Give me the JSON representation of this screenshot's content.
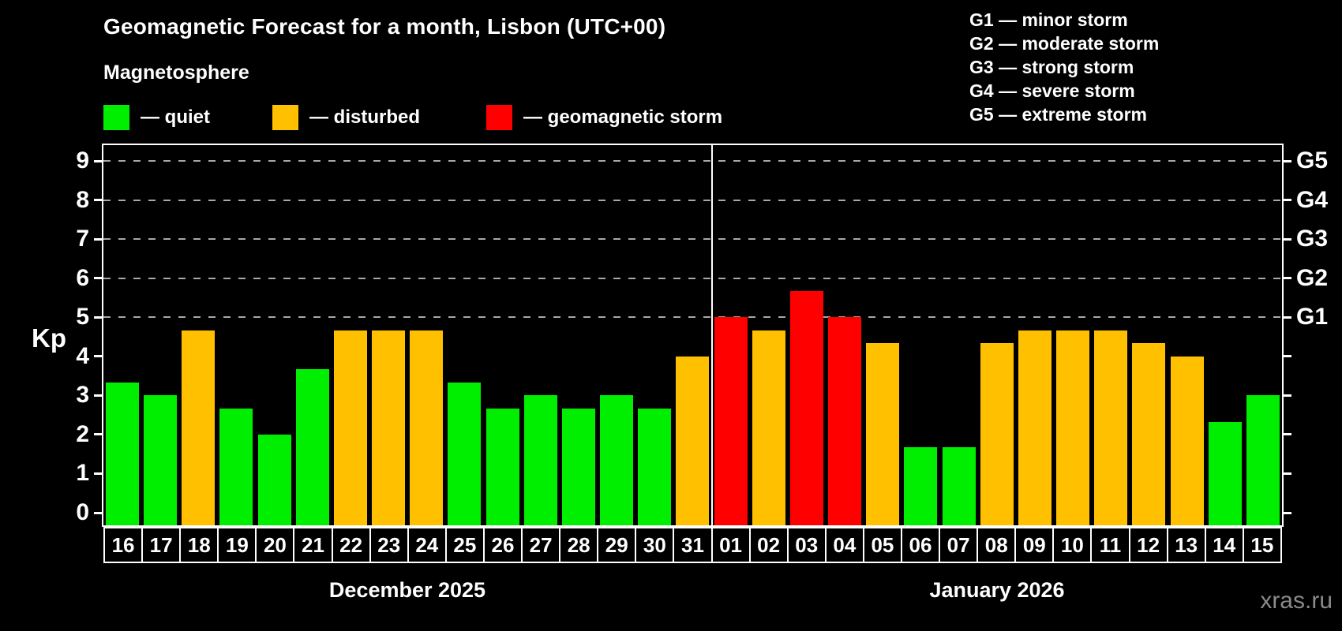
{
  "title": "Geomagnetic Forecast for a month, Lisbon (UTC+00)",
  "subtitle": "Magnetosphere",
  "legend": [
    {
      "key": "quiet",
      "label": "— quiet",
      "color": "#00ef00"
    },
    {
      "key": "disturbed",
      "label": "— disturbed",
      "color": "#ffc000"
    },
    {
      "key": "storm",
      "label": "— geomagnetic storm",
      "color": "#ff0000"
    }
  ],
  "g_scale": [
    "G1 — minor storm",
    "G2 — moderate storm",
    "G3 — strong storm",
    "G4 — severe storm",
    "G5 — extreme storm"
  ],
  "watermark": "xras.ru",
  "chart_data": {
    "type": "bar",
    "title": "Geomagnetic Forecast for a month, Lisbon (UTC+00)",
    "ylabel": "Kp",
    "ylim": [
      -0.32,
      9.4
    ],
    "yticks": [
      0,
      1,
      2,
      3,
      4,
      5,
      6,
      7,
      8,
      9
    ],
    "gridlines_at": [
      5,
      6,
      7,
      8,
      9
    ],
    "grid": "dashed horizontal lines only at storm levels Kp 5-9",
    "legend_position": "top-left",
    "right_axis": [
      {
        "label": "G5",
        "kp": 9
      },
      {
        "label": "G4",
        "kp": 8
      },
      {
        "label": "G3",
        "kp": 7
      },
      {
        "label": "G2",
        "kp": 6
      },
      {
        "label": "G1",
        "kp": 5
      }
    ],
    "months": [
      {
        "label": "December 2025",
        "days": 16
      },
      {
        "label": "January 2026",
        "days": 15
      }
    ],
    "divider_after_index": 16,
    "bars": [
      {
        "day": "16",
        "kp": 3.33,
        "status": "quiet"
      },
      {
        "day": "17",
        "kp": 3.0,
        "status": "quiet"
      },
      {
        "day": "18",
        "kp": 4.67,
        "status": "disturbed"
      },
      {
        "day": "19",
        "kp": 2.67,
        "status": "quiet"
      },
      {
        "day": "20",
        "kp": 2.0,
        "status": "quiet"
      },
      {
        "day": "21",
        "kp": 3.67,
        "status": "quiet"
      },
      {
        "day": "22",
        "kp": 4.67,
        "status": "disturbed"
      },
      {
        "day": "23",
        "kp": 4.67,
        "status": "disturbed"
      },
      {
        "day": "24",
        "kp": 4.67,
        "status": "disturbed"
      },
      {
        "day": "25",
        "kp": 3.33,
        "status": "quiet"
      },
      {
        "day": "26",
        "kp": 2.67,
        "status": "quiet"
      },
      {
        "day": "27",
        "kp": 3.0,
        "status": "quiet"
      },
      {
        "day": "28",
        "kp": 2.67,
        "status": "quiet"
      },
      {
        "day": "29",
        "kp": 3.0,
        "status": "quiet"
      },
      {
        "day": "30",
        "kp": 2.67,
        "status": "quiet"
      },
      {
        "day": "31",
        "kp": 4.0,
        "status": "disturbed"
      },
      {
        "day": "01",
        "kp": 5.0,
        "status": "storm"
      },
      {
        "day": "02",
        "kp": 4.67,
        "status": "disturbed"
      },
      {
        "day": "03",
        "kp": 5.67,
        "status": "storm"
      },
      {
        "day": "04",
        "kp": 5.0,
        "status": "storm"
      },
      {
        "day": "05",
        "kp": 4.33,
        "status": "disturbed"
      },
      {
        "day": "06",
        "kp": 1.67,
        "status": "quiet"
      },
      {
        "day": "07",
        "kp": 1.67,
        "status": "quiet"
      },
      {
        "day": "08",
        "kp": 4.33,
        "status": "disturbed"
      },
      {
        "day": "09",
        "kp": 4.67,
        "status": "disturbed"
      },
      {
        "day": "10",
        "kp": 4.67,
        "status": "disturbed"
      },
      {
        "day": "11",
        "kp": 4.67,
        "status": "disturbed"
      },
      {
        "day": "12",
        "kp": 4.33,
        "status": "disturbed"
      },
      {
        "day": "13",
        "kp": 4.0,
        "status": "disturbed"
      },
      {
        "day": "14",
        "kp": 2.33,
        "status": "quiet"
      },
      {
        "day": "15",
        "kp": 3.0,
        "status": "quiet"
      }
    ]
  }
}
